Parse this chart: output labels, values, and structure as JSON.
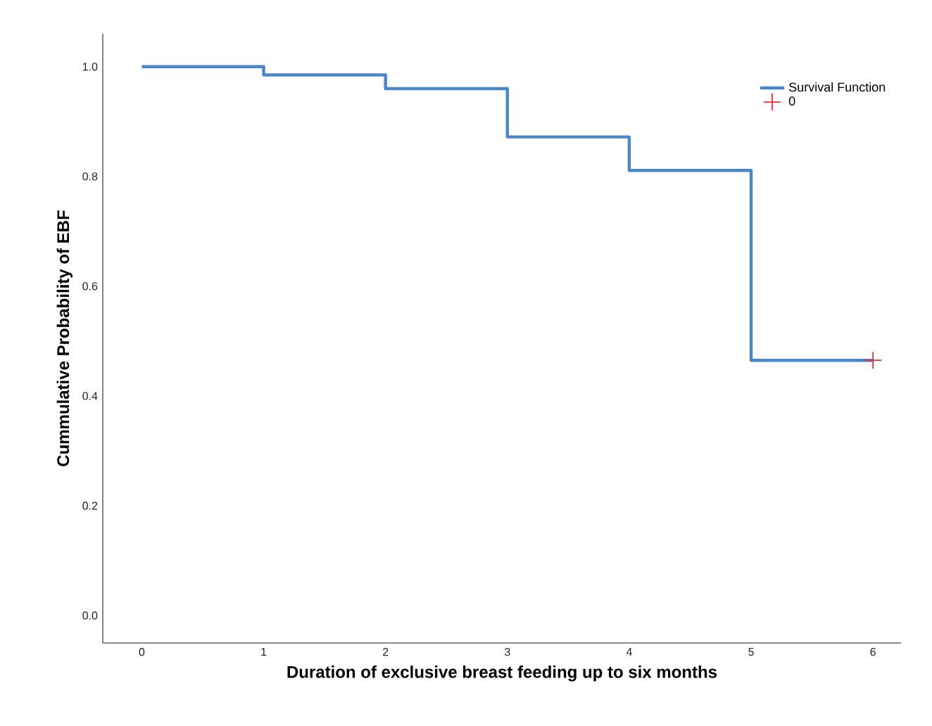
{
  "chart_data": {
    "type": "step",
    "xlabel": "Duration of exclusive breast feeding up to six months",
    "ylabel": "Cummulative Probability of EBF",
    "series": [
      {
        "name": "Survival Function",
        "color": "#4a86c8",
        "x": [
          0,
          1,
          2,
          3,
          4,
          5,
          6
        ],
        "values": [
          1.0,
          0.985,
          0.96,
          0.872,
          0.811,
          0.465,
          0.465
        ]
      },
      {
        "name": "0",
        "type": "scatter",
        "color": "#e8303a",
        "marker": "cross",
        "x": [
          6
        ],
        "values": [
          0.465
        ]
      }
    ],
    "xlim": [
      -0.32,
      6.23
    ],
    "ylim": [
      -0.05,
      1.06
    ],
    "xticks": [
      0,
      1,
      2,
      3,
      4,
      5,
      6
    ],
    "yticks": [
      {
        "value": 0,
        "label": "0.0"
      },
      0.2,
      0.4,
      0.6,
      0.8,
      {
        "value": 1,
        "label": "1.0"
      }
    ],
    "legend": "top right",
    "grid": false
  }
}
